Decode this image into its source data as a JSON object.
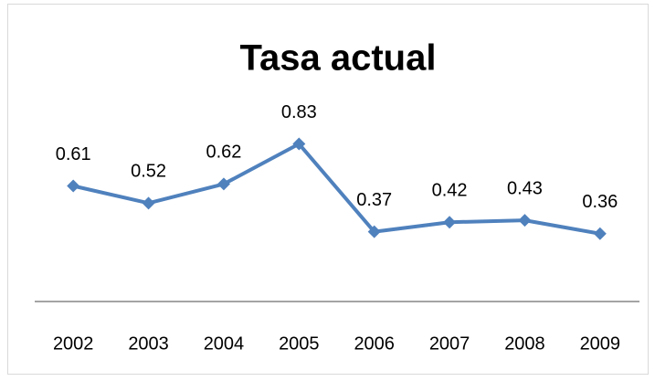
{
  "chart_data": {
    "type": "line",
    "title": "Tasa actual",
    "categories": [
      "2002",
      "2003",
      "2004",
      "2005",
      "2006",
      "2007",
      "2008",
      "2009"
    ],
    "series": [
      {
        "name": "Tasa actual",
        "color": "#4f81bd",
        "values": [
          0.61,
          0.52,
          0.62,
          0.83,
          0.37,
          0.42,
          0.43,
          0.36
        ]
      }
    ],
    "ylim": [
      0,
      1
    ]
  }
}
